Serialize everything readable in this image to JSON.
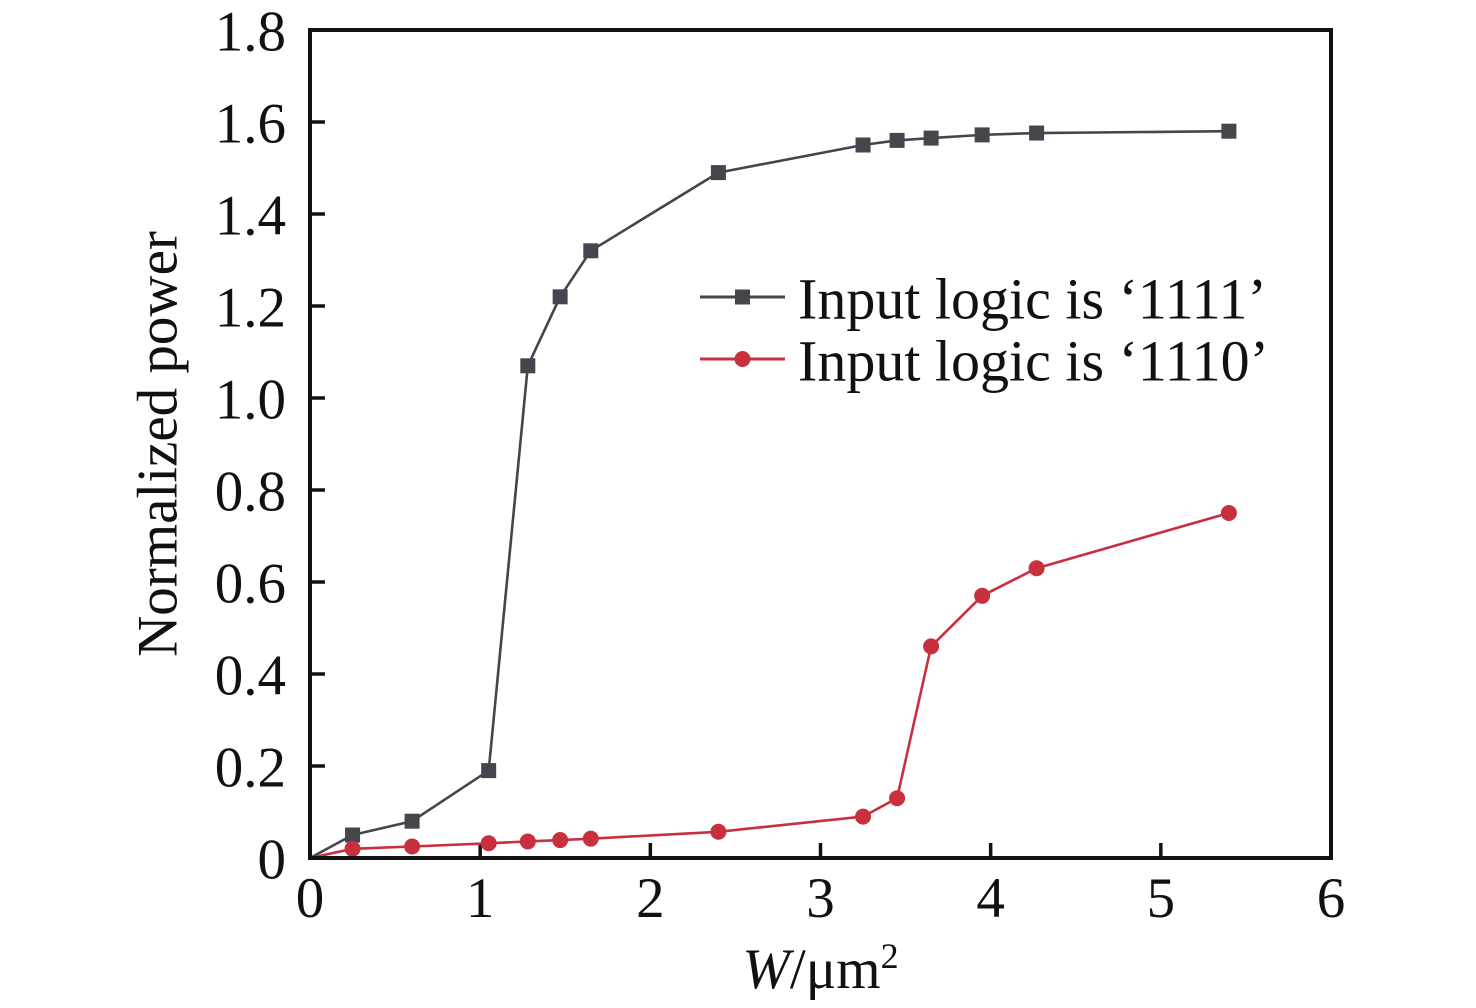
{
  "chart_data": {
    "type": "line",
    "title": "",
    "xlabel": {
      "italic": "W",
      "rest": "/μm",
      "sup": "2"
    },
    "ylabel": "Normalized power",
    "xlim": [
      0,
      6
    ],
    "ylim": [
      0,
      1.8
    ],
    "grid": false,
    "x_ticks": {
      "values": [
        0,
        1,
        2,
        3,
        4,
        5,
        6
      ],
      "labels": [
        "0",
        "1",
        "2",
        "3",
        "4",
        "5",
        "6"
      ]
    },
    "y_ticks": {
      "values": [
        0,
        0.2,
        0.4,
        0.6,
        0.8,
        1.0,
        1.2,
        1.4,
        1.6,
        1.8
      ],
      "labels": [
        "0",
        "0.2",
        "0.4",
        "0.6",
        "0.8",
        "1.0",
        "1.2",
        "1.4",
        "1.6",
        "1.8"
      ]
    },
    "legend": {
      "position": "inside-upper-middle",
      "border": false
    },
    "x": [
      0,
      0.25,
      0.6,
      1.05,
      1.28,
      1.47,
      1.65,
      2.4,
      3.25,
      3.45,
      3.65,
      3.95,
      4.27,
      5.4
    ],
    "series": [
      {
        "name": "Input logic is ‘1111’",
        "color": "#45454d",
        "marker": "square",
        "values": [
          0,
          0.05,
          0.08,
          0.19,
          1.07,
          1.22,
          1.32,
          1.49,
          1.55,
          1.56,
          1.565,
          1.572,
          1.576,
          1.58
        ]
      },
      {
        "name": "Input logic is ‘1110’",
        "color": "#c8303e",
        "marker": "circle",
        "values": [
          0,
          0.02,
          0.025,
          0.032,
          0.036,
          0.039,
          0.042,
          0.057,
          0.09,
          0.13,
          0.46,
          0.57,
          0.63,
          0.75
        ]
      }
    ],
    "colors": {
      "axis": "#111111",
      "text": "#111111",
      "background": "#ffffff"
    }
  }
}
